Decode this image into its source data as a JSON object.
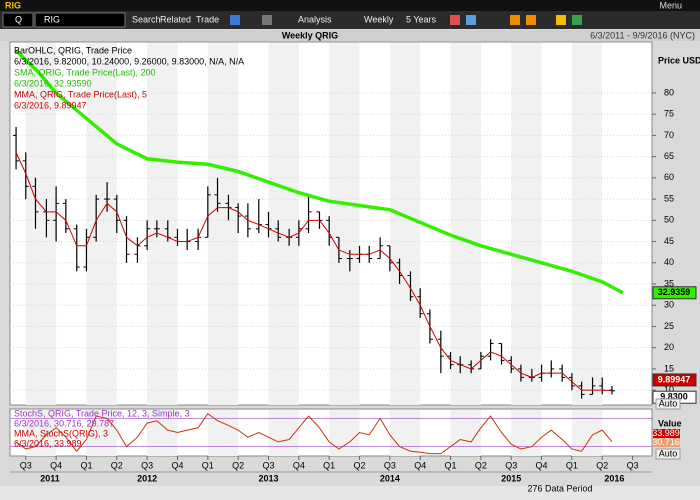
{
  "toolbar": {
    "window_title": "RIG",
    "security_type": "Q",
    "ticker": "RIG",
    "search": "Search",
    "related": "Related",
    "trade": "Trade",
    "analysis": "Analysis",
    "period": "Weekly",
    "range": "5 Years",
    "menu": "Menu"
  },
  "chart_data": {
    "type": "ohlc",
    "title": "Weekly QRIG",
    "date_range": "6/3/2011 - 9/9/2016 (NYC)",
    "y_axis_label": "Price USD",
    "ohlc_name": "BarOHLC, QRIG, Trade Price",
    "ohlc_text": "6/3/2016, 9.82000, 10.24000, 9.26000, 9.83000, N/A, N/A",
    "close_last_label": "9.8300",
    "bar_color": "#000000",
    "x": [
      2011.42,
      2011.5,
      2011.58,
      2011.67,
      2011.75,
      2011.83,
      2011.92,
      2012.0,
      2012.08,
      2012.17,
      2012.25,
      2012.33,
      2012.42,
      2012.5,
      2012.58,
      2012.67,
      2012.75,
      2012.83,
      2012.92,
      2013.0,
      2013.08,
      2013.17,
      2013.25,
      2013.33,
      2013.42,
      2013.5,
      2013.58,
      2013.67,
      2013.75,
      2013.83,
      2013.92,
      2014.0,
      2014.08,
      2014.17,
      2014.25,
      2014.33,
      2014.42,
      2014.5,
      2014.58,
      2014.67,
      2014.75,
      2014.83,
      2014.92,
      2015.0,
      2015.08,
      2015.17,
      2015.25,
      2015.33,
      2015.42,
      2015.5,
      2015.58,
      2015.67,
      2015.75,
      2015.83,
      2015.92,
      2016.0,
      2016.08,
      2016.17,
      2016.25,
      2016.33
    ],
    "open": [
      70,
      64,
      58,
      52,
      50,
      54,
      48,
      39,
      46,
      55,
      55,
      50,
      42,
      44,
      48,
      48,
      46,
      45,
      45,
      46,
      56,
      54,
      53,
      51,
      48,
      49,
      48,
      46,
      46,
      48,
      52,
      50,
      46,
      41,
      41,
      42,
      41,
      44,
      40,
      37,
      32,
      28,
      22,
      18,
      16,
      16,
      15,
      18,
      21,
      17,
      15,
      13,
      13,
      14,
      15,
      13,
      11,
      9,
      11,
      10
    ],
    "high": [
      72,
      66,
      60,
      55,
      58,
      55,
      49,
      48,
      56,
      59,
      56,
      51,
      46,
      50,
      50,
      50,
      48,
      48,
      48,
      58,
      60,
      56,
      54,
      54,
      55,
      52,
      50,
      48,
      50,
      56,
      52,
      51,
      46,
      43,
      44,
      44,
      46,
      44,
      41,
      38,
      34,
      29,
      24,
      19,
      18,
      17,
      19,
      22,
      21,
      18,
      16,
      15,
      16,
      17,
      16,
      14,
      12,
      13,
      13,
      11
    ],
    "low": [
      62,
      55,
      48,
      46,
      45,
      47,
      38,
      38,
      45,
      52,
      47,
      40,
      40,
      43,
      46,
      45,
      44,
      43,
      43,
      46,
      52,
      50,
      47,
      46,
      47,
      46,
      45,
      44,
      44,
      47,
      48,
      44,
      40,
      38,
      40,
      40,
      41,
      38,
      35,
      31,
      27,
      21,
      14,
      15,
      14,
      14,
      15,
      17,
      16,
      14,
      12,
      12,
      12,
      13,
      12,
      10,
      8,
      9,
      9,
      9
    ],
    "close": [
      64,
      58,
      52,
      50,
      54,
      48,
      39,
      46,
      55,
      55,
      50,
      42,
      44,
      48,
      48,
      46,
      45,
      45,
      46,
      56,
      54,
      53,
      51,
      48,
      49,
      48,
      46,
      46,
      48,
      52,
      50,
      46,
      41,
      41,
      42,
      41,
      44,
      40,
      37,
      32,
      28,
      22,
      18,
      16,
      16,
      15,
      18,
      21,
      17,
      15,
      13,
      13,
      14,
      15,
      13,
      11,
      9,
      11,
      10,
      9.83
    ],
    "series": [
      {
        "name": "SMA, QRIG, Trade Price(Last), 200",
        "value_text": "6/3/2016, 32.93590",
        "color": "#33ee00",
        "last_label": "32.9359",
        "x": [
          2011.42,
          2011.6,
          2011.75,
          2012.0,
          2012.25,
          2012.5,
          2012.75,
          2013.0,
          2013.25,
          2013.5,
          2013.75,
          2014.0,
          2014.25,
          2014.5,
          2014.75,
          2015.0,
          2015.25,
          2015.5,
          2015.75,
          2016.0,
          2016.25,
          2016.42
        ],
        "values": [
          90,
          85,
          80,
          74,
          68,
          64.5,
          63.7,
          63.2,
          61.5,
          59,
          56.5,
          54.5,
          53.5,
          52.5,
          49.5,
          46.5,
          44,
          42,
          40,
          38,
          35.5,
          32.9359
        ]
      },
      {
        "name": "MMA, QRIG, Trade Price(Last), 5",
        "value_text": "6/3/2016, 9.89947",
        "color": "#cc0000",
        "last_label": "9.89947",
        "values": [
          66,
          61,
          55,
          52,
          52,
          50,
          44,
          44,
          50,
          54,
          52,
          46,
          44,
          46,
          47,
          46,
          45,
          45,
          46,
          51,
          53,
          53,
          52,
          50,
          49,
          48,
          47,
          46,
          47,
          50,
          50,
          47,
          43,
          42,
          42,
          42,
          43,
          41,
          38,
          34,
          30,
          25,
          20,
          17,
          16,
          15,
          17,
          19,
          18,
          16,
          14,
          13,
          14,
          14,
          14,
          12,
          10,
          10,
          10,
          9.89947
        ]
      }
    ],
    "xlim": [
      2011.37,
      2016.66
    ],
    "ylim": [
      6.5,
      92
    ],
    "yticks": [
      10,
      15,
      20,
      25,
      30,
      35,
      40,
      45,
      50,
      55,
      60,
      65,
      70,
      75,
      80
    ],
    "grid": true,
    "xticks": [
      {
        "value": 2011.5,
        "label": "Q3"
      },
      {
        "value": 2011.75,
        "label": "Q4"
      },
      {
        "value": 2012.0,
        "label": "Q1"
      },
      {
        "value": 2012.25,
        "label": "Q2"
      },
      {
        "value": 2012.5,
        "label": "Q3"
      },
      {
        "value": 2012.75,
        "label": "Q4"
      },
      {
        "value": 2013.0,
        "label": "Q1"
      },
      {
        "value": 2013.25,
        "label": "Q2"
      },
      {
        "value": 2013.5,
        "label": "Q3"
      },
      {
        "value": 2013.75,
        "label": "Q4"
      },
      {
        "value": 2014.0,
        "label": "Q1"
      },
      {
        "value": 2014.25,
        "label": "Q2"
      },
      {
        "value": 2014.5,
        "label": "Q3"
      },
      {
        "value": 2014.75,
        "label": "Q4"
      },
      {
        "value": 2015.0,
        "label": "Q1"
      },
      {
        "value": 2015.25,
        "label": "Q2"
      },
      {
        "value": 2015.5,
        "label": "Q3"
      },
      {
        "value": 2015.75,
        "label": "Q4"
      },
      {
        "value": 2016.0,
        "label": "Q1"
      },
      {
        "value": 2016.25,
        "label": "Q2"
      },
      {
        "value": 2016.5,
        "label": "Q3"
      }
    ],
    "year_labels": [
      {
        "value": 2011.7,
        "label": "2011"
      },
      {
        "value": 2012.5,
        "label": "2012"
      },
      {
        "value": 2013.5,
        "label": "2013"
      },
      {
        "value": 2014.5,
        "label": "2014"
      },
      {
        "value": 2015.5,
        "label": "2015"
      },
      {
        "value": 2016.35,
        "label": "2016"
      }
    ],
    "lower_panel": {
      "type": "line",
      "name": "StochS, QRIG, Trade Price, 12, 3, Simple, 3",
      "value_text": "6/3/2016, 30.716, 29.787",
      "color": "#cc3300",
      "mma_name": "MMA, StochS(QRIG), 3",
      "mma_text": "6/3/2016, 33.989",
      "mma_color": "#cc0000",
      "axis_label": "Value",
      "last_label": "30.716",
      "mma_last_label": "33.989",
      "ylim": [
        0,
        100
      ],
      "levels": [
        20,
        80
      ],
      "values": [
        30,
        15,
        20,
        45,
        60,
        40,
        10,
        35,
        85,
        80,
        55,
        20,
        40,
        70,
        75,
        55,
        50,
        55,
        60,
        90,
        75,
        65,
        55,
        40,
        50,
        40,
        30,
        35,
        60,
        85,
        60,
        30,
        15,
        30,
        50,
        45,
        80,
        45,
        20,
        10,
        8,
        5,
        5,
        20,
        35,
        30,
        60,
        85,
        50,
        25,
        15,
        20,
        40,
        55,
        35,
        15,
        10,
        45,
        55,
        30.716
      ]
    },
    "auto": "Auto",
    "data_period": "276 Data Period"
  }
}
